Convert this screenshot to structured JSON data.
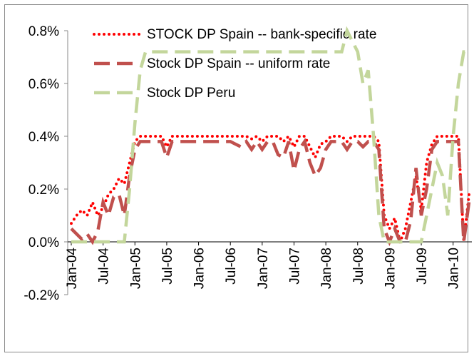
{
  "chart_data": {
    "type": "line",
    "categories": [
      "Jan-04",
      null,
      null,
      null,
      null,
      null,
      "Jul-04",
      null,
      null,
      null,
      null,
      null,
      "Jan-05",
      null,
      null,
      null,
      null,
      null,
      "Jul-05",
      null,
      null,
      null,
      null,
      null,
      "Jan-06",
      null,
      null,
      null,
      null,
      null,
      "Jul-06",
      null,
      null,
      null,
      null,
      null,
      "Jan-07",
      null,
      null,
      null,
      null,
      null,
      "Jul-07",
      null,
      null,
      null,
      null,
      null,
      "Jan-08",
      null,
      null,
      null,
      null,
      null,
      "Jul-08",
      null,
      null,
      null,
      null,
      null,
      "Jan-09",
      null,
      null,
      null,
      null,
      null,
      "Jul-09",
      null,
      null,
      null,
      null,
      null,
      "Jan-10",
      null,
      null,
      null
    ],
    "series": [
      {
        "name": "STOCK DP Spain -- bank-specific rate",
        "color": "#ff0000",
        "line_style": "dotted",
        "values": [
          0.07,
          0.1,
          0.12,
          0.1,
          0.15,
          0.1,
          0.13,
          0.18,
          0.2,
          0.24,
          0.22,
          0.3,
          0.38,
          0.4,
          0.4,
          0.4,
          0.4,
          0.4,
          0.36,
          0.4,
          0.4,
          0.4,
          0.4,
          0.4,
          0.4,
          0.4,
          0.4,
          0.4,
          0.4,
          0.4,
          0.4,
          0.4,
          0.4,
          0.4,
          0.39,
          0.4,
          0.38,
          0.4,
          0.4,
          0.4,
          0.38,
          0.4,
          0.36,
          0.4,
          0.4,
          0.36,
          0.32,
          0.37,
          0.38,
          0.4,
          0.4,
          0.4,
          0.38,
          0.4,
          0.4,
          0.4,
          0.4,
          0.4,
          0.38,
          0.1,
          0.05,
          0.09,
          0.0,
          0.05,
          0.15,
          0.25,
          0.12,
          0.3,
          0.37,
          0.4,
          0.4,
          0.4,
          0.4,
          0.4,
          0.0,
          0.18
        ]
      },
      {
        "name": "Stock DP Spain -- uniform rate",
        "color": "#c0504d",
        "line_style": "dashed",
        "values": [
          0.05,
          0.03,
          0.01,
          0.03,
          0.0,
          0.04,
          0.15,
          0.1,
          0.17,
          0.18,
          0.1,
          0.25,
          0.35,
          0.38,
          0.38,
          0.38,
          0.38,
          0.38,
          0.32,
          0.38,
          0.38,
          0.38,
          0.38,
          0.38,
          0.38,
          0.38,
          0.38,
          0.38,
          0.38,
          0.38,
          0.38,
          0.37,
          0.36,
          0.38,
          0.35,
          0.38,
          0.35,
          0.38,
          0.38,
          0.33,
          0.32,
          0.38,
          0.27,
          0.35,
          0.38,
          0.3,
          0.25,
          0.28,
          0.35,
          0.38,
          0.38,
          0.38,
          0.35,
          0.38,
          0.38,
          0.36,
          0.38,
          0.38,
          0.35,
          0.05,
          0.0,
          0.05,
          0.0,
          0.0,
          0.08,
          0.28,
          0.1,
          0.2,
          0.35,
          0.38,
          0.38,
          0.38,
          0.38,
          0.38,
          0.0,
          0.15
        ]
      },
      {
        "name": "Stock DP Peru",
        "color": "#c3d69b",
        "line_style": "dashed",
        "values": [
          0,
          0,
          0,
          0,
          0,
          0,
          0,
          0,
          0,
          0,
          0,
          0.2,
          0.45,
          0.65,
          0.72,
          0.72,
          0.72,
          0.72,
          0.72,
          0.72,
          0.72,
          0.72,
          0.72,
          0.72,
          0.72,
          0.72,
          0.72,
          0.72,
          0.72,
          0.72,
          0.72,
          0.72,
          0.72,
          0.72,
          0.72,
          0.72,
          0.72,
          0.72,
          0.72,
          0.72,
          0.72,
          0.72,
          0.72,
          0.72,
          0.72,
          0.72,
          0.72,
          0.72,
          0.72,
          0.72,
          0.72,
          0.72,
          0.8,
          0.76,
          0.72,
          0.6,
          0.65,
          0.4,
          0.1,
          0.0,
          0,
          0,
          0,
          0,
          0,
          0,
          0,
          0.1,
          0.2,
          0.3,
          0.25,
          0.1,
          0.4,
          0.6,
          0.72,
          0.72
        ]
      }
    ],
    "ylim": [
      -0.2,
      0.8
    ],
    "yticks": [
      {
        "value": -0.2,
        "label": "-0.2%"
      },
      {
        "value": 0,
        "label": "0.0%"
      },
      {
        "value": 0.2,
        "label": "0.2%"
      },
      {
        "value": 0.4,
        "label": "0.4%"
      },
      {
        "value": 0.6,
        "label": "0.6%"
      },
      {
        "value": 0.8,
        "label": "0.8%"
      }
    ],
    "grid": false
  }
}
